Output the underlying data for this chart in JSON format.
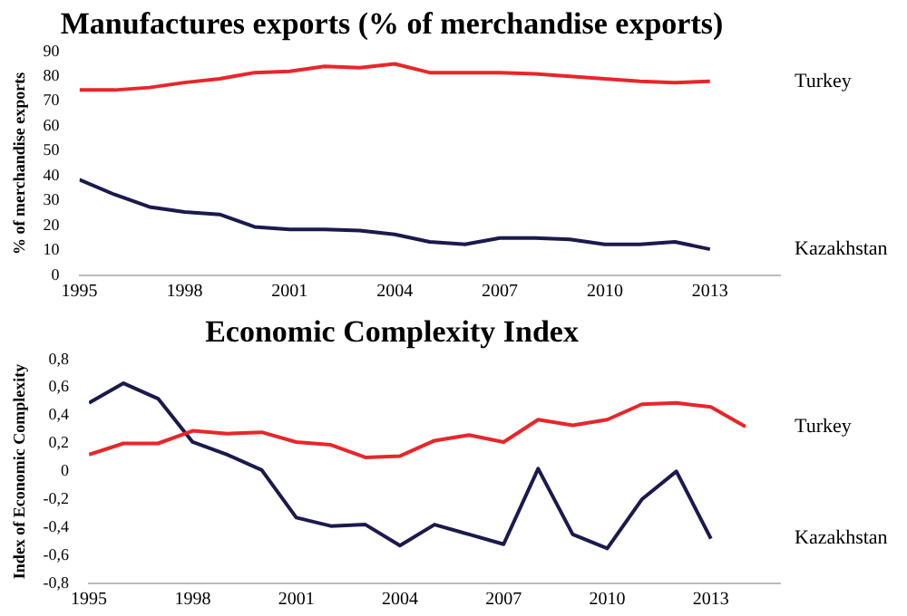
{
  "chart_data": [
    {
      "type": "line",
      "title": "Manufactures exports (% of merchandise exports)",
      "ylabel": "% of merchandise exports",
      "xlim": [
        1995,
        2015
      ],
      "xticks": [
        1995,
        1998,
        2001,
        2004,
        2007,
        2010,
        2013
      ],
      "ylim": [
        0,
        90
      ],
      "yticks": [
        0,
        10,
        20,
        30,
        40,
        50,
        60,
        70,
        80,
        90
      ],
      "grid": false,
      "legend": false,
      "x": [
        1995,
        1996,
        1997,
        1998,
        1999,
        2000,
        2001,
        2002,
        2003,
        2004,
        2005,
        2006,
        2007,
        2008,
        2009,
        2010,
        2011,
        2012,
        2013
      ],
      "series": [
        {
          "name": "Turkey",
          "color": "#e8262a",
          "values": [
            74.5,
            74.5,
            75.5,
            77.5,
            79,
            81.5,
            82,
            84,
            83.5,
            85,
            81.5,
            81.5,
            81.5,
            81,
            80,
            79,
            78,
            77.5,
            78
          ]
        },
        {
          "name": "Kazakhstan",
          "color": "#1a1a4e",
          "values": [
            38.5,
            32.5,
            27.5,
            25.5,
            24.5,
            19.5,
            18.5,
            18.5,
            18,
            16.5,
            13.5,
            12.5,
            15,
            15,
            14.5,
            12.5,
            12.5,
            13.5,
            10.5
          ]
        }
      ]
    },
    {
      "type": "line",
      "title": "Economic Complexity Index",
      "ylabel": "Index of Economic Complexity",
      "xlim": [
        1995,
        2015
      ],
      "xticks": [
        1995,
        1998,
        2001,
        2004,
        2007,
        2010,
        2013
      ],
      "ylim": [
        -0.8,
        0.8
      ],
      "yticks": [
        {
          "value": -0.8,
          "label": "-0,8"
        },
        {
          "value": -0.6,
          "label": "-0,6"
        },
        {
          "value": -0.4,
          "label": "-0,4"
        },
        {
          "value": -0.2,
          "label": "-0,2"
        },
        0,
        {
          "value": 0.2,
          "label": "0,2"
        },
        {
          "value": 0.4,
          "label": "0,4"
        },
        {
          "value": 0.6,
          "label": "0,6"
        },
        {
          "value": 0.8,
          "label": "0,8"
        }
      ],
      "grid": false,
      "legend": false,
      "series": [
        {
          "name": "Turkey",
          "color": "#e8262a",
          "x": [
            1995,
            1996,
            1997,
            1998,
            1999,
            2000,
            2001,
            2002,
            2003,
            2004,
            2005,
            2006,
            2007,
            2008,
            2009,
            2010,
            2011,
            2012,
            2013,
            2014
          ],
          "values": [
            0.12,
            0.2,
            0.2,
            0.29,
            0.27,
            0.28,
            0.21,
            0.19,
            0.1,
            0.11,
            0.22,
            0.26,
            0.21,
            0.37,
            0.33,
            0.37,
            0.48,
            0.49,
            0.46,
            0.32
          ]
        },
        {
          "name": "Kazakhstan",
          "color": "#1a1a4e",
          "x": [
            1995,
            1996,
            1997,
            1998,
            1999,
            2000,
            2001,
            2002,
            2003,
            2004,
            2005,
            2006,
            2007,
            2008,
            2009,
            2010,
            2011,
            2012,
            2013
          ],
          "values": [
            0.49,
            0.63,
            0.52,
            0.21,
            0.12,
            0.01,
            -0.33,
            -0.39,
            -0.38,
            -0.53,
            -0.38,
            -0.45,
            -0.52,
            0.02,
            -0.45,
            -0.55,
            -0.2,
            0.0,
            -0.48
          ]
        }
      ]
    }
  ]
}
